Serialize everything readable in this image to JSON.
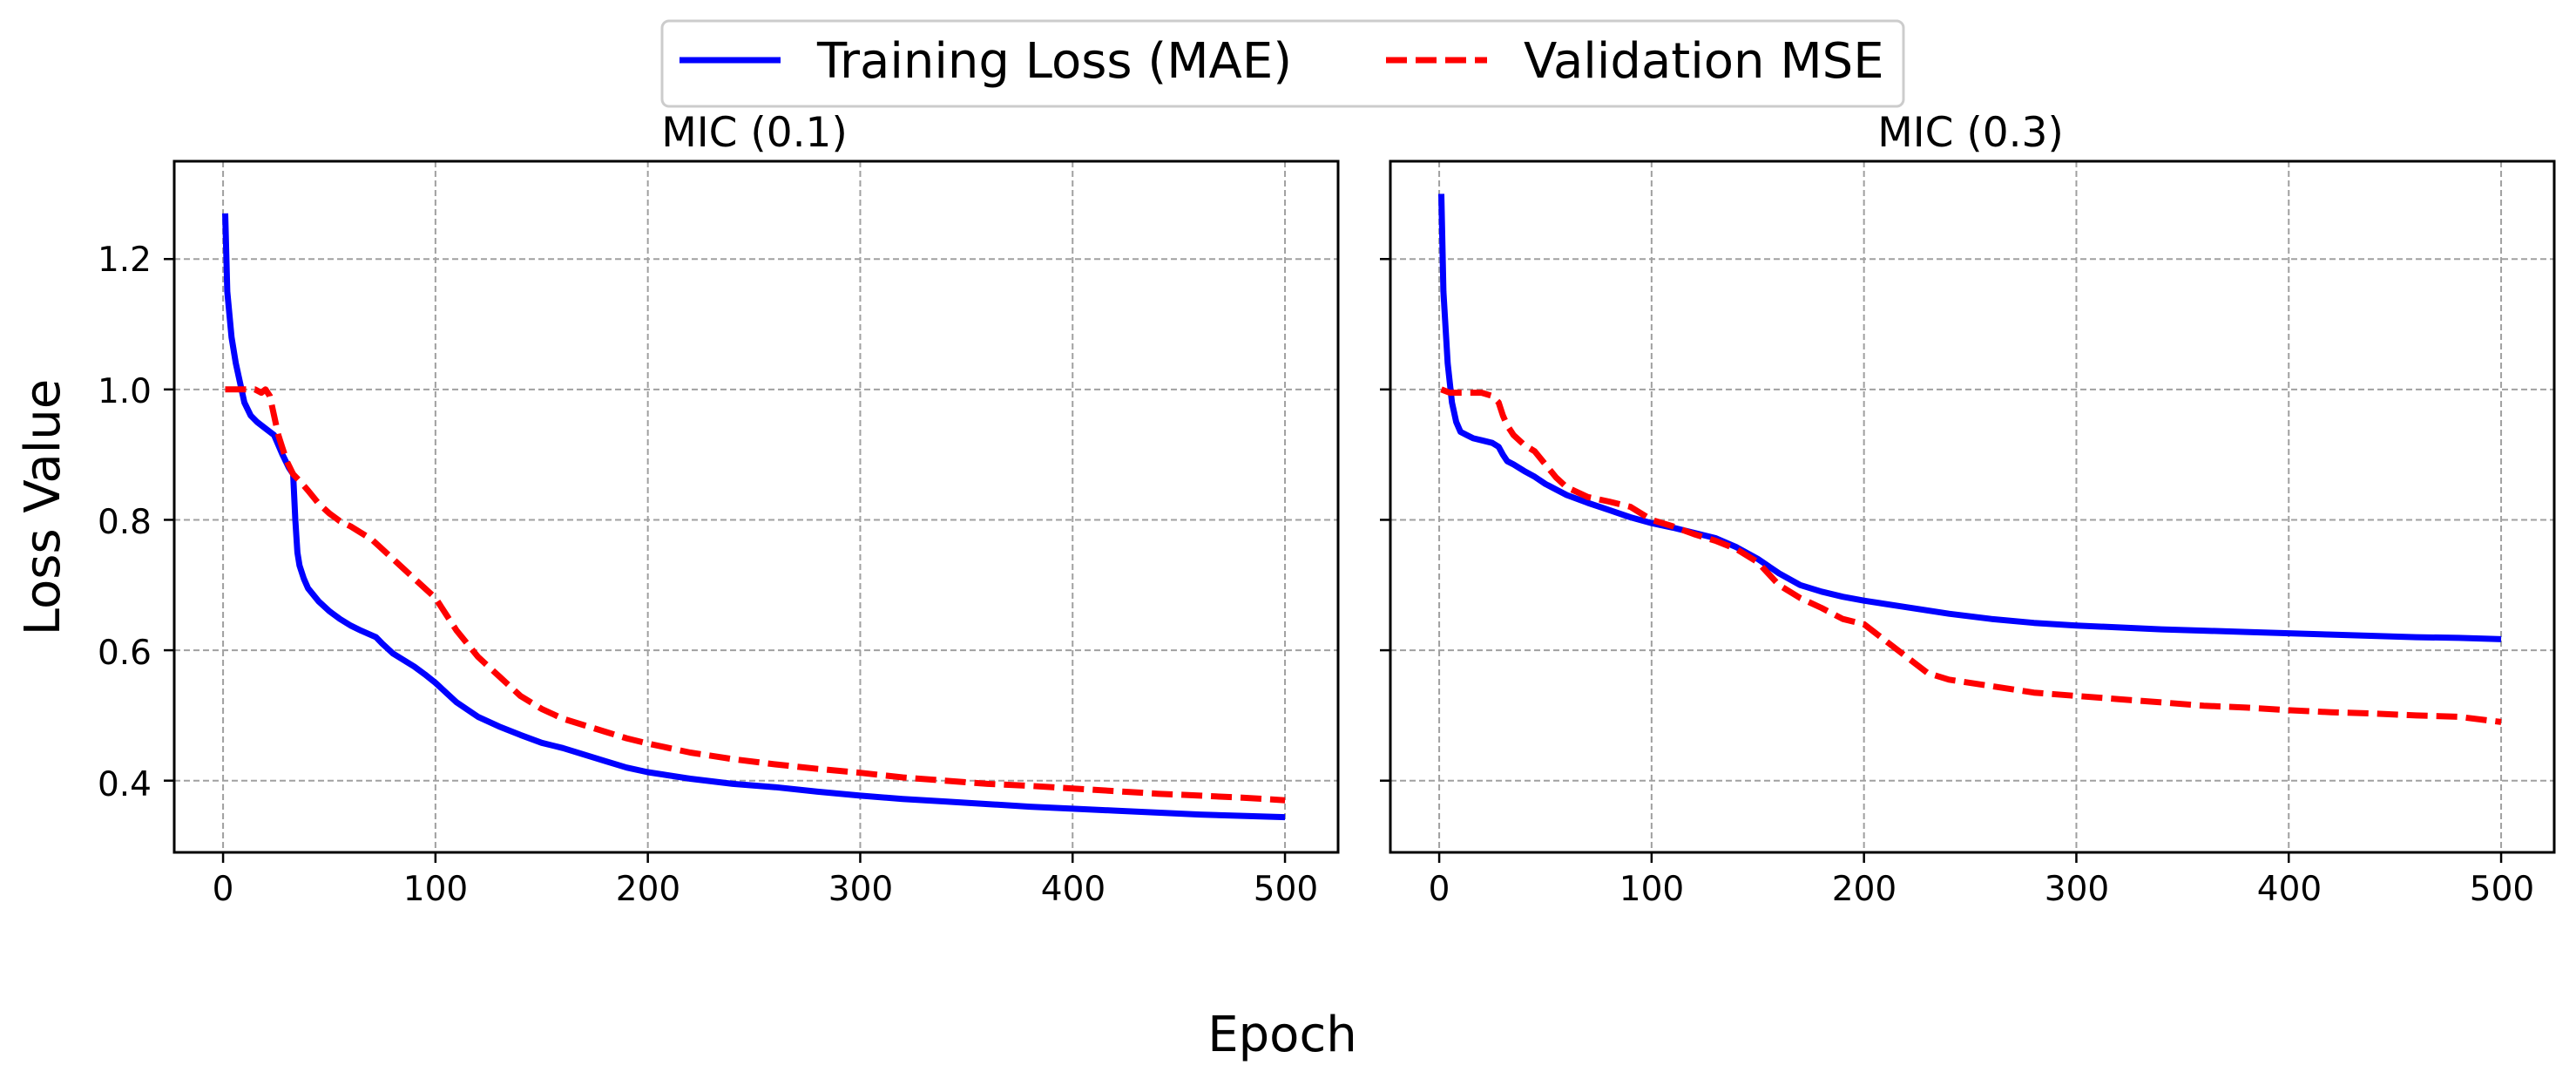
{
  "figure": {
    "xlabel": "Epoch",
    "ylabel": "Loss Value",
    "legend": {
      "placement": "top-center",
      "entries": [
        {
          "label": "Training Loss (MAE)",
          "color": "#0000ff",
          "style": "solid"
        },
        {
          "label": "Validation MSE",
          "color": "#ff0000",
          "style": "dashed"
        }
      ]
    },
    "grid": true
  },
  "chart_data": [
    {
      "type": "line",
      "title": "MIC (0.1)",
      "xlabel": "Epoch",
      "ylabel": "Loss Value",
      "xlim": [
        -23,
        525
      ],
      "ylim": [
        0.29,
        1.35
      ],
      "xticks": [
        0,
        100,
        200,
        300,
        400,
        500
      ],
      "yticks": [
        0.4,
        0.6,
        0.8,
        1.0,
        1.2
      ],
      "ytick_labels": [
        "0.4",
        "0.6",
        "0.8",
        "1.0",
        "1.2"
      ],
      "series": [
        {
          "name": "Training Loss (MAE)",
          "color": "#0000ff",
          "style": "solid",
          "x": [
            1,
            2,
            4,
            6,
            8,
            10,
            13,
            16,
            20,
            24,
            28,
            31,
            33,
            34,
            35,
            36,
            38,
            40,
            45,
            50,
            55,
            60,
            65,
            70,
            72,
            75,
            80,
            85,
            90,
            95,
            100,
            110,
            120,
            130,
            140,
            150,
            160,
            170,
            180,
            190,
            200,
            220,
            240,
            260,
            280,
            300,
            320,
            340,
            360,
            380,
            400,
            420,
            440,
            460,
            480,
            500
          ],
          "values": [
            1.27,
            1.15,
            1.08,
            1.04,
            1.01,
            0.98,
            0.96,
            0.95,
            0.94,
            0.93,
            0.9,
            0.88,
            0.87,
            0.8,
            0.75,
            0.73,
            0.71,
            0.695,
            0.675,
            0.66,
            0.648,
            0.638,
            0.63,
            0.623,
            0.62,
            0.61,
            0.595,
            0.585,
            0.575,
            0.563,
            0.55,
            0.52,
            0.498,
            0.483,
            0.47,
            0.458,
            0.45,
            0.44,
            0.43,
            0.42,
            0.413,
            0.403,
            0.395,
            0.39,
            0.383,
            0.377,
            0.372,
            0.368,
            0.364,
            0.36,
            0.357,
            0.354,
            0.351,
            0.348,
            0.346,
            0.344
          ]
        },
        {
          "name": "Validation MSE",
          "color": "#ff0000",
          "style": "dashed",
          "x": [
            1,
            5,
            10,
            15,
            18,
            20,
            22,
            24,
            26,
            28,
            30,
            33,
            36,
            40,
            45,
            50,
            55,
            60,
            65,
            70,
            75,
            80,
            85,
            90,
            95,
            100,
            110,
            120,
            130,
            140,
            150,
            160,
            170,
            180,
            190,
            200,
            220,
            240,
            260,
            280,
            300,
            320,
            340,
            360,
            380,
            400,
            420,
            440,
            460,
            480,
            500
          ],
          "values": [
            1.0,
            1.0,
            1.0,
            1.0,
            0.995,
            1.0,
            0.99,
            0.96,
            0.93,
            0.91,
            0.89,
            0.87,
            0.86,
            0.845,
            0.825,
            0.81,
            0.798,
            0.79,
            0.78,
            0.77,
            0.755,
            0.74,
            0.725,
            0.71,
            0.695,
            0.68,
            0.63,
            0.59,
            0.56,
            0.53,
            0.51,
            0.495,
            0.485,
            0.475,
            0.465,
            0.457,
            0.443,
            0.433,
            0.425,
            0.418,
            0.412,
            0.405,
            0.4,
            0.395,
            0.392,
            0.388,
            0.384,
            0.38,
            0.377,
            0.374,
            0.37
          ]
        }
      ]
    },
    {
      "type": "line",
      "title": "MIC (0.3)",
      "xlabel": "Epoch",
      "ylabel": "Loss Value",
      "xlim": [
        -23,
        525
      ],
      "ylim": [
        0.29,
        1.35
      ],
      "xticks": [
        0,
        100,
        200,
        300,
        400,
        500
      ],
      "yticks": [
        0.4,
        0.6,
        0.8,
        1.0,
        1.2
      ],
      "ytick_labels": [],
      "series": [
        {
          "name": "Training Loss (MAE)",
          "color": "#0000ff",
          "style": "solid",
          "x": [
            1,
            2,
            4,
            6,
            8,
            10,
            13,
            16,
            20,
            25,
            28,
            30,
            32,
            35,
            40,
            45,
            50,
            60,
            70,
            80,
            90,
            100,
            110,
            120,
            130,
            140,
            150,
            160,
            170,
            180,
            190,
            200,
            220,
            240,
            260,
            280,
            300,
            320,
            340,
            360,
            380,
            400,
            420,
            440,
            460,
            480,
            500
          ],
          "values": [
            1.3,
            1.15,
            1.04,
            0.98,
            0.95,
            0.935,
            0.93,
            0.925,
            0.922,
            0.918,
            0.912,
            0.9,
            0.89,
            0.885,
            0.875,
            0.866,
            0.855,
            0.838,
            0.826,
            0.815,
            0.804,
            0.795,
            0.788,
            0.78,
            0.772,
            0.758,
            0.74,
            0.718,
            0.7,
            0.69,
            0.682,
            0.676,
            0.666,
            0.656,
            0.648,
            0.642,
            0.638,
            0.635,
            0.632,
            0.63,
            0.628,
            0.626,
            0.624,
            0.622,
            0.62,
            0.619,
            0.617
          ]
        },
        {
          "name": "Validation MSE",
          "color": "#ff0000",
          "style": "dashed",
          "x": [
            1,
            5,
            10,
            15,
            20,
            25,
            28,
            30,
            32,
            35,
            40,
            45,
            50,
            55,
            60,
            70,
            80,
            90,
            100,
            110,
            120,
            130,
            140,
            150,
            160,
            170,
            180,
            190,
            200,
            210,
            220,
            230,
            240,
            260,
            280,
            300,
            320,
            340,
            360,
            380,
            400,
            420,
            440,
            460,
            480,
            500
          ],
          "values": [
            1.0,
            0.995,
            0.995,
            0.995,
            0.995,
            0.99,
            0.98,
            0.96,
            0.945,
            0.93,
            0.915,
            0.905,
            0.885,
            0.865,
            0.85,
            0.835,
            0.828,
            0.82,
            0.8,
            0.79,
            0.778,
            0.768,
            0.755,
            0.735,
            0.7,
            0.68,
            0.665,
            0.648,
            0.64,
            0.615,
            0.59,
            0.565,
            0.555,
            0.545,
            0.535,
            0.53,
            0.525,
            0.52,
            0.515,
            0.512,
            0.508,
            0.505,
            0.503,
            0.5,
            0.498,
            0.49
          ]
        }
      ]
    }
  ]
}
